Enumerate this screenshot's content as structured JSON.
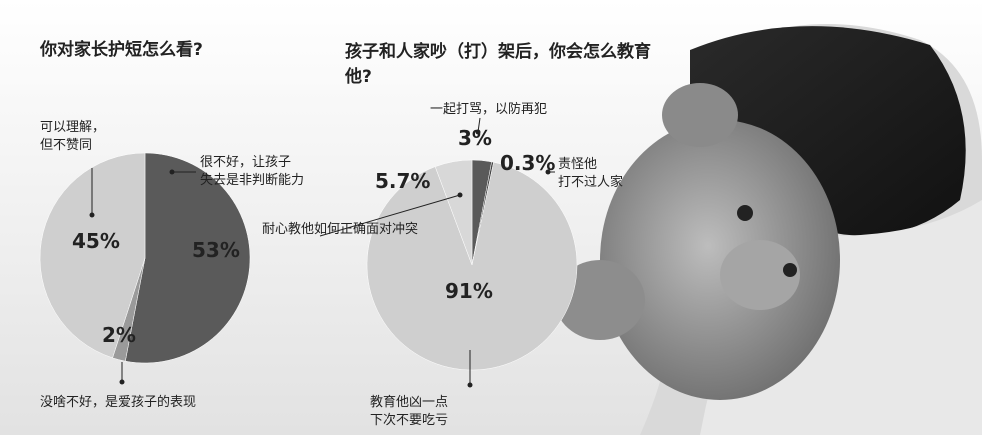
{
  "chart_data": [
    {
      "type": "pie",
      "title": "你对家长护短怎么看?",
      "categories": [
        [
          "很不好，让孩子",
          "失去是非判断能力"
        ],
        [
          "没啥不好，是爱孩子的表现"
        ],
        [
          "可以理解，",
          "但不赞同"
        ]
      ],
      "values": [
        53,
        2,
        45
      ],
      "value_labels": [
        "53%",
        "2%",
        "45%"
      ],
      "colors": [
        "#5a5a5a",
        "#9a9a9a",
        "#cfcfcf"
      ]
    },
    {
      "type": "pie",
      "title": "孩子和人家吵（打）架后，你会怎么教育他?",
      "categories": [
        [
          "一起打骂，以防再犯"
        ],
        [
          "责怪他",
          "打不过人家"
        ],
        [
          "耐心教他如何正确面对冲突"
        ],
        [
          "教育他凶一点",
          "下次不要吃亏"
        ]
      ],
      "values": [
        3,
        0.3,
        91,
        5.7
      ],
      "value_labels": [
        "3%",
        "0.3%",
        "91%",
        "5.7%"
      ],
      "colors": [
        "#5a5a5a",
        "#444444",
        "#cfcfcf",
        "#d8d8d8"
      ]
    }
  ]
}
